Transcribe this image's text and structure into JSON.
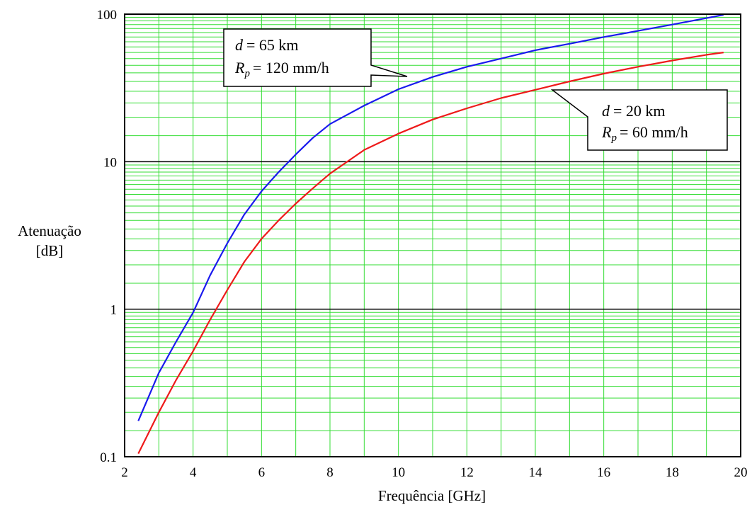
{
  "chart_data": {
    "type": "line",
    "title": "",
    "xlabel": "Frequência [GHz]",
    "ylabel_line1": "Atenuação",
    "ylabel_line2": "[dB]",
    "xlim": [
      2,
      20
    ],
    "ylim": [
      0.1,
      100
    ],
    "yscale": "log",
    "grid": true,
    "x_ticks": [
      "2",
      "4",
      "6",
      "8",
      "10",
      "12",
      "14",
      "16",
      "18",
      "20"
    ],
    "y_ticks": [
      "0.1",
      "1",
      "10",
      "100"
    ],
    "colors": {
      "grid": "#33dd33",
      "decade_grid": "#000000",
      "series_1": "#1a1aee",
      "series_2": "#ee1a1a"
    },
    "series": [
      {
        "label_d_var": "d",
        "label_d_val": "= 65 km",
        "label_r_var": "R",
        "label_r_sub": "p",
        "label_r_val": "= 120 mm/h",
        "x": [
          2.4,
          3,
          3.5,
          4,
          4.5,
          5,
          5.5,
          6,
          6.5,
          7,
          7.5,
          8,
          9,
          10,
          11,
          12,
          13,
          14,
          15,
          16,
          17,
          18,
          19,
          19.5
        ],
        "y": [
          0.175,
          0.37,
          0.6,
          0.95,
          1.7,
          2.8,
          4.4,
          6.3,
          8.5,
          11.2,
          14.5,
          18,
          24,
          31,
          37.5,
          44,
          50,
          57,
          63,
          70,
          77,
          85,
          94,
          99
        ]
      },
      {
        "label_d_var": "d",
        "label_d_val": "= 20 km",
        "label_r_var": "R",
        "label_r_sub": "p",
        "label_r_val": "= 60 mm/h",
        "x": [
          2.4,
          3,
          3.5,
          4,
          4.5,
          5,
          5.5,
          6,
          6.5,
          7,
          7.5,
          8,
          9,
          10,
          11,
          12,
          13,
          14,
          15,
          16,
          17,
          18,
          19,
          19.5
        ],
        "y": [
          0.105,
          0.2,
          0.33,
          0.52,
          0.85,
          1.35,
          2.1,
          3.0,
          4.0,
          5.2,
          6.6,
          8.3,
          12,
          15.5,
          19.3,
          23,
          27,
          30.7,
          35,
          39.5,
          44,
          48.5,
          53,
          55
        ]
      }
    ]
  }
}
